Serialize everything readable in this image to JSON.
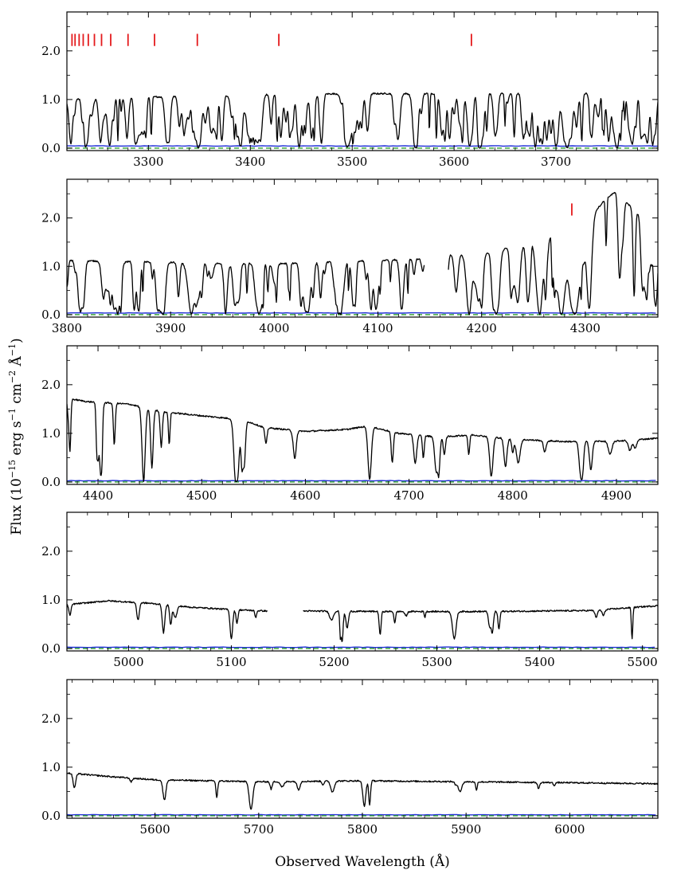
{
  "figure": {
    "ylabel_parts": [
      "Flux (10",
      "−15",
      " erg s",
      "−1",
      " cm",
      "−2",
      " Å",
      "−1",
      ")"
    ],
    "xlabel": "Observed Wavelength (Å)"
  },
  "chart_data": [
    {
      "type": "line",
      "panel": 1,
      "xlim": [
        3220,
        3800
      ],
      "ylim": [
        -0.05,
        2.8
      ],
      "xticks": [
        3300,
        3400,
        3500,
        3600,
        3700
      ],
      "xtick_labels": [
        "3300",
        "3400",
        "3500",
        "3600",
        "3700"
      ],
      "yticks": [
        0.0,
        1.0,
        2.0
      ],
      "ytick_labels": [
        "0.0",
        "1.0",
        "2.0"
      ],
      "continuum": [
        [
          3220,
          1.0
        ],
        [
          3300,
          1.05
        ],
        [
          3400,
          1.1
        ],
        [
          3500,
          1.12
        ],
        [
          3600,
          1.12
        ],
        [
          3700,
          1.13
        ],
        [
          3800,
          1.12
        ]
      ],
      "absorption_lines": [
        {
          "x": 3240,
          "depth": 0.8,
          "width": 1.5
        },
        {
          "x": 3253,
          "depth": 0.85,
          "width": 1.6
        },
        {
          "x": 3262,
          "depth": 0.95,
          "width": 2.0
        },
        {
          "x": 3279,
          "depth": 0.8,
          "width": 1.5
        },
        {
          "x": 3295,
          "depth": 0.7,
          "width": 1.5
        },
        {
          "x": 3318,
          "depth": 0.85,
          "width": 1.8
        },
        {
          "x": 3335,
          "depth": 0.75,
          "width": 1.5
        },
        {
          "x": 3349,
          "depth": 1.0,
          "width": 2.2
        },
        {
          "x": 3372,
          "depth": 0.8,
          "width": 1.5
        },
        {
          "x": 3390,
          "depth": 0.7,
          "width": 1.5
        },
        {
          "x": 3410,
          "depth": 0.85,
          "width": 1.8
        },
        {
          "x": 3430,
          "depth": 0.8,
          "width": 1.5
        },
        {
          "x": 3448,
          "depth": 1.0,
          "width": 2.0
        },
        {
          "x": 3470,
          "depth": 0.6,
          "width": 1.4
        },
        {
          "x": 3495,
          "depth": 0.85,
          "width": 1.8
        },
        {
          "x": 3515,
          "depth": 0.7,
          "width": 1.5
        },
        {
          "x": 3545,
          "depth": 0.8,
          "width": 1.8
        },
        {
          "x": 3562,
          "depth": 1.0,
          "width": 2.2
        },
        {
          "x": 3588,
          "depth": 0.75,
          "width": 1.6
        },
        {
          "x": 3615,
          "depth": 0.95,
          "width": 2.0
        },
        {
          "x": 3640,
          "depth": 0.7,
          "width": 1.5
        },
        {
          "x": 3668,
          "depth": 0.8,
          "width": 1.6
        },
        {
          "x": 3691,
          "depth": 0.85,
          "width": 1.6
        },
        {
          "x": 3711,
          "depth": 1.0,
          "width": 4.0
        },
        {
          "x": 3735,
          "depth": 0.8,
          "width": 1.6
        },
        {
          "x": 3760,
          "depth": 1.0,
          "width": 2.5
        },
        {
          "x": 3775,
          "depth": 0.9,
          "width": 2.0
        }
      ],
      "line_density_per_100A": 30,
      "gaps": [],
      "error_level": 0.04,
      "markers": {
        "x": [
          3225,
          3228,
          3232,
          3236,
          3241,
          3247,
          3254,
          3263,
          3280,
          3306,
          3348,
          3428,
          3617
        ],
        "y_range": [
          2.1,
          2.35
        ]
      }
    },
    {
      "type": "line",
      "panel": 2,
      "xlim": [
        3800,
        4370
      ],
      "ylim": [
        -0.05,
        2.8
      ],
      "xticks": [
        3800,
        3900,
        4000,
        4100,
        4200,
        4300
      ],
      "xtick_labels": [
        "3800",
        "3900",
        "4000",
        "4100",
        "4200",
        "4300"
      ],
      "yticks": [
        0.0,
        1.0,
        2.0
      ],
      "ytick_labels": [
        "0.0",
        "1.0",
        "2.0"
      ],
      "continuum": [
        [
          3800,
          1.12
        ],
        [
          3900,
          1.08
        ],
        [
          4000,
          1.05
        ],
        [
          4100,
          1.12
        ],
        [
          4145,
          1.16
        ],
        [
          4170,
          1.25
        ],
        [
          4200,
          1.25
        ],
        [
          4240,
          1.45
        ],
        [
          4265,
          1.7
        ],
        [
          4285,
          1.45
        ],
        [
          4300,
          1.9
        ],
        [
          4320,
          2.4
        ],
        [
          4330,
          2.55
        ],
        [
          4345,
          2.2
        ],
        [
          4370,
          1.75
        ]
      ],
      "absorption_lines": [
        {
          "x": 3812,
          "depth": 0.8,
          "width": 1.6
        },
        {
          "x": 3849,
          "depth": 1.0,
          "width": 2.5
        },
        {
          "x": 3893,
          "depth": 1.0,
          "width": 2.0
        },
        {
          "x": 3920,
          "depth": 1.0,
          "width": 3.0
        },
        {
          "x": 3962,
          "depth": 0.8,
          "width": 1.8
        },
        {
          "x": 3985,
          "depth": 1.0,
          "width": 2.2
        },
        {
          "x": 4030,
          "depth": 0.9,
          "width": 2.0
        },
        {
          "x": 4062,
          "depth": 1.0,
          "width": 2.0
        },
        {
          "x": 4098,
          "depth": 0.9,
          "width": 2.0
        },
        {
          "x": 4123,
          "depth": 0.85,
          "width": 1.8
        },
        {
          "x": 4188,
          "depth": 1.0,
          "width": 2.5
        },
        {
          "x": 4214,
          "depth": 1.0,
          "width": 2.5
        },
        {
          "x": 4235,
          "depth": 0.8,
          "width": 2.0
        },
        {
          "x": 4256,
          "depth": 1.0,
          "width": 3.0
        },
        {
          "x": 4277,
          "depth": 1.0,
          "width": 3.5
        },
        {
          "x": 4290,
          "depth": 1.0,
          "width": 5.0
        },
        {
          "x": 4303,
          "depth": 0.7,
          "width": 2.0
        },
        {
          "x": 4362,
          "depth": 0.5,
          "width": 1.5
        }
      ],
      "line_density_per_100A": 22,
      "gaps": [
        [
          4145,
          4168
        ]
      ],
      "error_level": 0.03,
      "markers": {
        "x": [
          4287
        ],
        "y_range": [
          2.05,
          2.3
        ]
      }
    },
    {
      "type": "line",
      "panel": 3,
      "xlim": [
        4370,
        4940
      ],
      "ylim": [
        -0.05,
        2.8
      ],
      "xticks": [
        4400,
        4500,
        4600,
        4700,
        4800,
        4900
      ],
      "xtick_labels": [
        "4400",
        "4500",
        "4600",
        "4700",
        "4800",
        "4900"
      ],
      "yticks": [
        0.0,
        1.0,
        2.0
      ],
      "ytick_labels": [
        "0.0",
        "1.0",
        "2.0"
      ],
      "continuum": [
        [
          4370,
          1.72
        ],
        [
          4390,
          1.65
        ],
        [
          4430,
          1.6
        ],
        [
          4460,
          1.45
        ],
        [
          4500,
          1.36
        ],
        [
          4540,
          1.28
        ],
        [
          4560,
          1.12
        ],
        [
          4600,
          1.04
        ],
        [
          4640,
          1.08
        ],
        [
          4660,
          1.15
        ],
        [
          4690,
          1.0
        ],
        [
          4730,
          0.92
        ],
        [
          4760,
          0.97
        ],
        [
          4800,
          0.88
        ],
        [
          4850,
          0.83
        ],
        [
          4900,
          0.84
        ],
        [
          4940,
          0.9
        ]
      ],
      "absorption_lines": [
        {
          "x": 4372,
          "depth": 0.3,
          "width": 1.2
        },
        {
          "x": 4444,
          "depth": 1.2,
          "width": 1.5
        },
        {
          "x": 4452,
          "depth": 0.8,
          "width": 1.2
        },
        {
          "x": 4461,
          "depth": 0.5,
          "width": 1.0
        },
        {
          "x": 4533,
          "depth": 1.1,
          "width": 1.8
        },
        {
          "x": 4541,
          "depth": 0.7,
          "width": 1.2
        },
        {
          "x": 4562,
          "depth": 0.3,
          "width": 1.0
        },
        {
          "x": 4590,
          "depth": 0.3,
          "width": 1.0
        },
        {
          "x": 4662,
          "depth": 0.95,
          "width": 1.6
        },
        {
          "x": 4706,
          "depth": 0.6,
          "width": 1.4
        },
        {
          "x": 4726,
          "depth": 0.7,
          "width": 1.4
        },
        {
          "x": 4734,
          "depth": 0.4,
          "width": 1.0
        },
        {
          "x": 4793,
          "depth": 0.65,
          "width": 1.4
        },
        {
          "x": 4800,
          "depth": 0.3,
          "width": 1.0
        },
        {
          "x": 4913,
          "depth": 0.25,
          "width": 1.5
        },
        {
          "x": 4918,
          "depth": 0.2,
          "width": 1.5
        }
      ],
      "line_density_per_100A": 4,
      "gaps": [],
      "error_level": 0.02,
      "markers": null
    },
    {
      "type": "line",
      "panel": 4,
      "xlim": [
        4940,
        5515
      ],
      "ylim": [
        -0.05,
        2.8
      ],
      "xticks": [
        5000,
        5100,
        5200,
        5300,
        5400,
        5500
      ],
      "xtick_labels": [
        "5000",
        "5100",
        "5200",
        "5300",
        "5400",
        "5500"
      ],
      "yticks": [
        0.0,
        1.0,
        2.0
      ],
      "ytick_labels": [
        "0.0",
        "1.0",
        "2.0"
      ],
      "continuum": [
        [
          4940,
          0.9
        ],
        [
          4980,
          0.98
        ],
        [
          5020,
          0.93
        ],
        [
          5060,
          0.85
        ],
        [
          5100,
          0.8
        ],
        [
          5135,
          0.77
        ],
        [
          5170,
          0.77
        ],
        [
          5250,
          0.76
        ],
        [
          5350,
          0.76
        ],
        [
          5450,
          0.78
        ],
        [
          5515,
          0.88
        ]
      ],
      "absorption_lines": [
        {
          "x": 4943,
          "depth": 0.25,
          "width": 1.0
        },
        {
          "x": 5034,
          "depth": 0.65,
          "width": 1.2
        },
        {
          "x": 5041,
          "depth": 0.45,
          "width": 1.0
        },
        {
          "x": 5100,
          "depth": 0.75,
          "width": 1.2
        },
        {
          "x": 5270,
          "depth": 0.12,
          "width": 1.2
        },
        {
          "x": 5455,
          "depth": 0.18,
          "width": 1.2
        },
        {
          "x": 5462,
          "depth": 0.15,
          "width": 1.2
        }
      ],
      "line_density_per_100A": 3,
      "gaps": [
        [
          5135,
          5170
        ]
      ],
      "error_level": 0.02,
      "markers": null
    },
    {
      "type": "line",
      "panel": 5,
      "xlim": [
        5515,
        6085
      ],
      "ylim": [
        -0.05,
        2.8
      ],
      "xticks": [
        5600,
        5700,
        5800,
        5900,
        6000
      ],
      "xtick_labels": [
        "5600",
        "5700",
        "5800",
        "5900",
        "6000"
      ],
      "yticks": [
        0.0,
        1.0,
        2.0
      ],
      "ytick_labels": [
        "0.0",
        "1.0",
        "2.0"
      ],
      "continuum": [
        [
          5515,
          0.88
        ],
        [
          5560,
          0.8
        ],
        [
          5600,
          0.74
        ],
        [
          5700,
          0.7
        ],
        [
          5800,
          0.72
        ],
        [
          5900,
          0.7
        ],
        [
          6000,
          0.68
        ],
        [
          6085,
          0.66
        ]
      ],
      "absorption_lines": [
        {
          "x": 5577,
          "depth": 0.1,
          "width": 1.0
        },
        {
          "x": 5660,
          "depth": 0.1,
          "width": 1.0
        },
        {
          "x": 5712,
          "depth": 0.22,
          "width": 1.0
        },
        {
          "x": 5762,
          "depth": 0.1,
          "width": 1.0
        },
        {
          "x": 5890,
          "depth": 0.1,
          "width": 1.0
        },
        {
          "x": 5970,
          "depth": 0.18,
          "width": 1.0
        },
        {
          "x": 5985,
          "depth": 0.08,
          "width": 1.0
        }
      ],
      "line_density_per_100A": 2,
      "gaps": [],
      "error_level": 0.015,
      "markers": null
    }
  ]
}
